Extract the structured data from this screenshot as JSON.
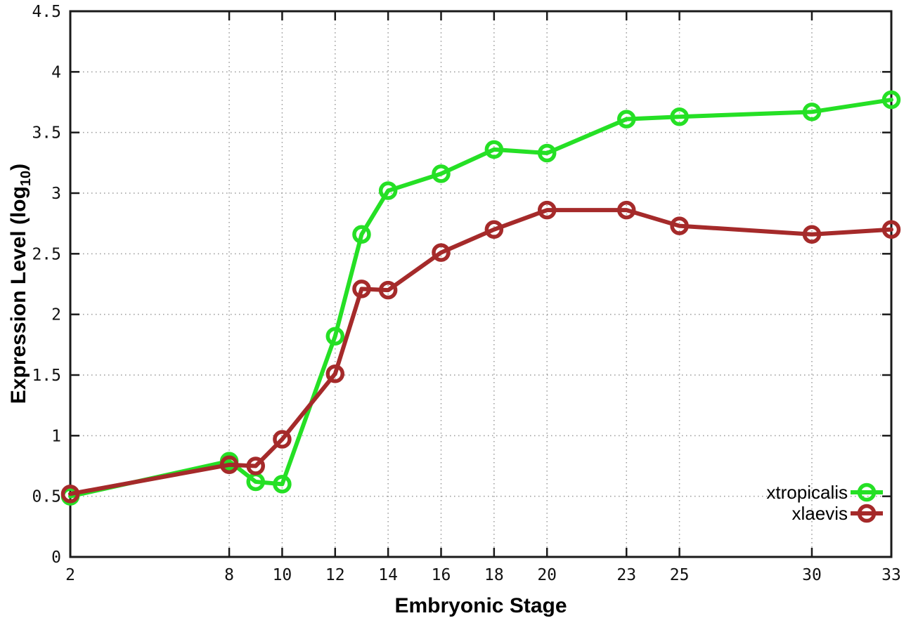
{
  "chart_data": {
    "type": "line",
    "title": "",
    "xlabel": "Embryonic Stage",
    "ylabel": {
      "prefix": "Expression Level (log",
      "sub": "10",
      "suffix": ")",
      "full": "Expression Level (log10)"
    },
    "x": [
      2,
      8,
      9,
      10,
      12,
      13,
      14,
      16,
      18,
      20,
      23,
      25,
      30,
      33
    ],
    "series": [
      {
        "name": "xtropicalis",
        "color": "#25e025",
        "marker": "open-circle",
        "values": [
          0.5,
          0.79,
          0.62,
          0.6,
          1.82,
          2.66,
          3.02,
          3.16,
          3.36,
          3.33,
          3.61,
          3.63,
          3.67,
          3.77
        ]
      },
      {
        "name": "xlaevis",
        "color": "#a52a2a",
        "marker": "open-circle",
        "values": [
          0.52,
          0.76,
          0.75,
          0.97,
          1.51,
          2.21,
          2.2,
          2.51,
          2.7,
          2.86,
          2.86,
          2.73,
          2.66,
          2.7
        ]
      }
    ],
    "xlim": [
      2,
      33
    ],
    "ylim": [
      0,
      4.5
    ],
    "xticks": {
      "values": [
        2,
        8,
        10,
        12,
        14,
        16,
        18,
        20,
        23,
        25,
        30,
        33
      ],
      "labels": [
        "2",
        "8",
        "10",
        "12",
        "14",
        "16",
        "18",
        "20",
        "23",
        "25",
        "30",
        "33"
      ]
    },
    "yticks": {
      "values": [
        0,
        0.5,
        1,
        1.5,
        2,
        2.5,
        3,
        3.5,
        4,
        4.5
      ],
      "labels": [
        "0",
        "0.5",
        "1",
        "1.5",
        "2",
        "2.5",
        "3",
        "3.5",
        "4",
        "4.5"
      ]
    },
    "grid": true,
    "grid_style": "dotted",
    "legend_position": "inside-bottom-right",
    "legend_entries": [
      "xtropicalis",
      "xlaevis"
    ],
    "colors": {
      "background": "#ffffff",
      "border": "#1a1a1a",
      "grid": "#9a9a9a",
      "text": "#111111"
    }
  }
}
